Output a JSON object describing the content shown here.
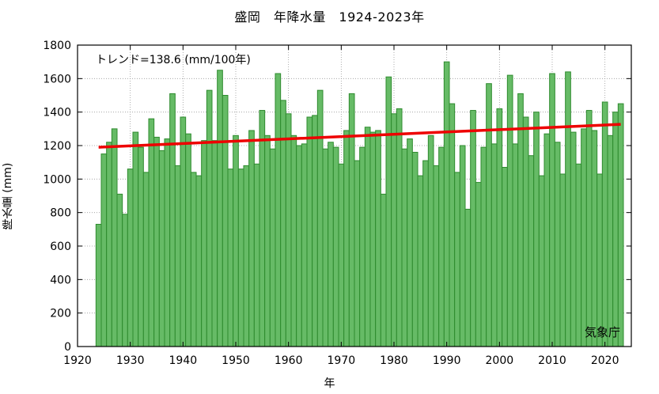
{
  "chart_data": {
    "type": "bar",
    "title": "盛岡　年降水量　1924-2023年",
    "xlabel": "年",
    "ylabel": "降水量 (mm)",
    "trend_label": "トレンド=138.6 (mm/100年)",
    "source_label": "気象庁",
    "xlim": [
      1920,
      2025
    ],
    "ylim": [
      0,
      1800
    ],
    "xticks": [
      1920,
      1930,
      1940,
      1950,
      1960,
      1970,
      1980,
      1990,
      2000,
      2010,
      2020
    ],
    "yticks": [
      0,
      200,
      400,
      600,
      800,
      1000,
      1200,
      1400,
      1600,
      1800
    ],
    "grid": true,
    "x": [
      1924,
      1925,
      1926,
      1927,
      1928,
      1929,
      1930,
      1931,
      1932,
      1933,
      1934,
      1935,
      1936,
      1937,
      1938,
      1939,
      1940,
      1941,
      1942,
      1943,
      1944,
      1945,
      1946,
      1947,
      1948,
      1949,
      1950,
      1951,
      1952,
      1953,
      1954,
      1955,
      1956,
      1957,
      1958,
      1959,
      1960,
      1961,
      1962,
      1963,
      1964,
      1965,
      1966,
      1967,
      1968,
      1969,
      1970,
      1971,
      1972,
      1973,
      1974,
      1975,
      1976,
      1977,
      1978,
      1979,
      1980,
      1981,
      1982,
      1983,
      1984,
      1985,
      1986,
      1987,
      1988,
      1989,
      1990,
      1991,
      1992,
      1993,
      1994,
      1995,
      1996,
      1997,
      1998,
      1999,
      2000,
      2001,
      2002,
      2003,
      2004,
      2005,
      2006,
      2007,
      2008,
      2009,
      2010,
      2011,
      2012,
      2013,
      2014,
      2015,
      2016,
      2017,
      2018,
      2019,
      2020,
      2021,
      2022,
      2023
    ],
    "values": [
      730,
      1150,
      1220,
      1300,
      910,
      790,
      1060,
      1280,
      1190,
      1040,
      1360,
      1250,
      1170,
      1240,
      1510,
      1080,
      1370,
      1270,
      1040,
      1020,
      1230,
      1530,
      1230,
      1650,
      1500,
      1060,
      1260,
      1060,
      1080,
      1290,
      1090,
      1410,
      1260,
      1180,
      1630,
      1470,
      1390,
      1260,
      1200,
      1210,
      1370,
      1380,
      1530,
      1180,
      1220,
      1190,
      1090,
      1290,
      1510,
      1110,
      1190,
      1310,
      1280,
      1290,
      910,
      1610,
      1390,
      1420,
      1180,
      1240,
      1160,
      1020,
      1110,
      1260,
      1080,
      1190,
      1700,
      1450,
      1040,
      1200,
      820,
      1410,
      980,
      1190,
      1570,
      1210,
      1420,
      1070,
      1620,
      1210,
      1510,
      1370,
      1140,
      1400,
      1020,
      1270,
      1630,
      1220,
      1030,
      1640,
      1280,
      1090,
      1300,
      1410,
      1290,
      1030,
      1460,
      1260,
      1400,
      1450
    ],
    "trend": {
      "x": [
        1924,
        2023
      ],
      "y": [
        1190,
        1327
      ]
    },
    "colors": {
      "bar_fill": "#66bb66",
      "bar_stroke": "#2e8b2e",
      "trend": "#ee0000"
    }
  }
}
